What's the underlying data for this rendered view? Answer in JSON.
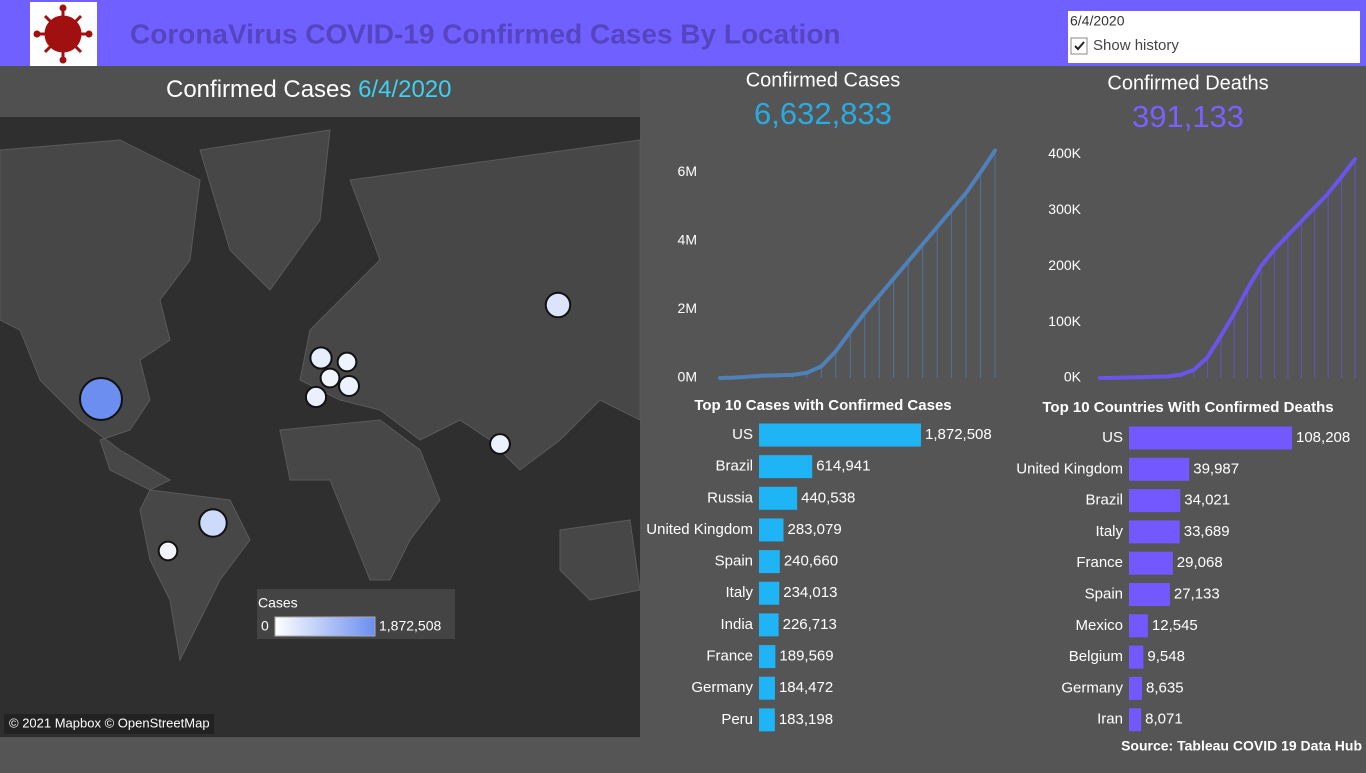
{
  "header": {
    "title": "CoronaVirus COVID-19 Confirmed Cases By Location",
    "date": "6/4/2020",
    "checkbox": "Show history"
  },
  "map": {
    "title": "Confirmed Cases",
    "date": "6/4/2020",
    "attribution": "© 2021 Mapbox © OpenStreetMap",
    "legend": {
      "title": "Cases",
      "min": 0,
      "max": {
        "value": 1872508,
        "label": "1,872,508"
      }
    }
  },
  "source": "Source: Tableau COVID 19 Data Hub",
  "chart_data": [
    {
      "type": "line",
      "title": "Confirmed Cases",
      "kpi": "6,632,833",
      "color": "#4f80b8",
      "values": [
        600,
        10000,
        40000,
        70000,
        80000,
        90000,
        150000,
        340000,
        780000,
        1350000,
        1900000,
        2400000,
        2900000,
        3400000,
        3900000,
        4400000,
        4900000,
        5400000,
        6000000,
        6632833
      ],
      "ylim": [
        0,
        7000000
      ],
      "yticks": [
        {
          "value": 0,
          "label": "0M"
        },
        {
          "value": 2000000,
          "label": "2M"
        },
        {
          "value": 4000000,
          "label": "4M"
        },
        {
          "value": 6000000,
          "label": "6M"
        }
      ]
    },
    {
      "type": "line",
      "title": "Confirmed Deaths",
      "kpi": "391,133",
      "color": "#6a55e8",
      "values": [
        17,
        300,
        900,
        1500,
        2300,
        3000,
        5800,
        14600,
        37000,
        75000,
        115000,
        160000,
        200000,
        230000,
        255000,
        280000,
        305000,
        330000,
        360000,
        391133
      ],
      "ylim": [
        0,
        420000
      ],
      "yticks": [
        {
          "value": 0,
          "label": "0K"
        },
        {
          "value": 100000,
          "label": "100K"
        },
        {
          "value": 200000,
          "label": "200K"
        },
        {
          "value": 300000,
          "label": "300K"
        },
        {
          "value": 400000,
          "label": "400K"
        }
      ]
    },
    {
      "type": "bar",
      "horizontal": true,
      "title": "Top 10 Cases with Confirmed Cases",
      "color": "#1fb4f5",
      "categories": [
        "US",
        "Brazil",
        "Russia",
        "United Kingdom",
        "Spain",
        "Italy",
        "India",
        "France",
        "Germany",
        "Peru"
      ],
      "values": [
        1872508,
        614941,
        440538,
        283079,
        240660,
        234013,
        226713,
        189569,
        184472,
        183198
      ],
      "value_labels": [
        "1,872,508",
        "614,941",
        "440,538",
        "283,079",
        "240,660",
        "234,013",
        "226,713",
        "189,569",
        "184,472",
        "183,198"
      ]
    },
    {
      "type": "bar",
      "horizontal": true,
      "title": "Top 10 Countries With Confirmed Deaths",
      "color": "#7458ff",
      "categories": [
        "US",
        "United Kingdom",
        "Brazil",
        "Italy",
        "France",
        "Spain",
        "Mexico",
        "Belgium",
        "Germany",
        "Iran"
      ],
      "values": [
        108208,
        39987,
        34021,
        33689,
        29068,
        27133,
        12545,
        9548,
        8635,
        8071
      ],
      "value_labels": [
        "108,208",
        "39,987",
        "34,021",
        "33,689",
        "29,068",
        "27,133",
        "12,545",
        "9,548",
        "8,635",
        "8,071"
      ]
    }
  ]
}
